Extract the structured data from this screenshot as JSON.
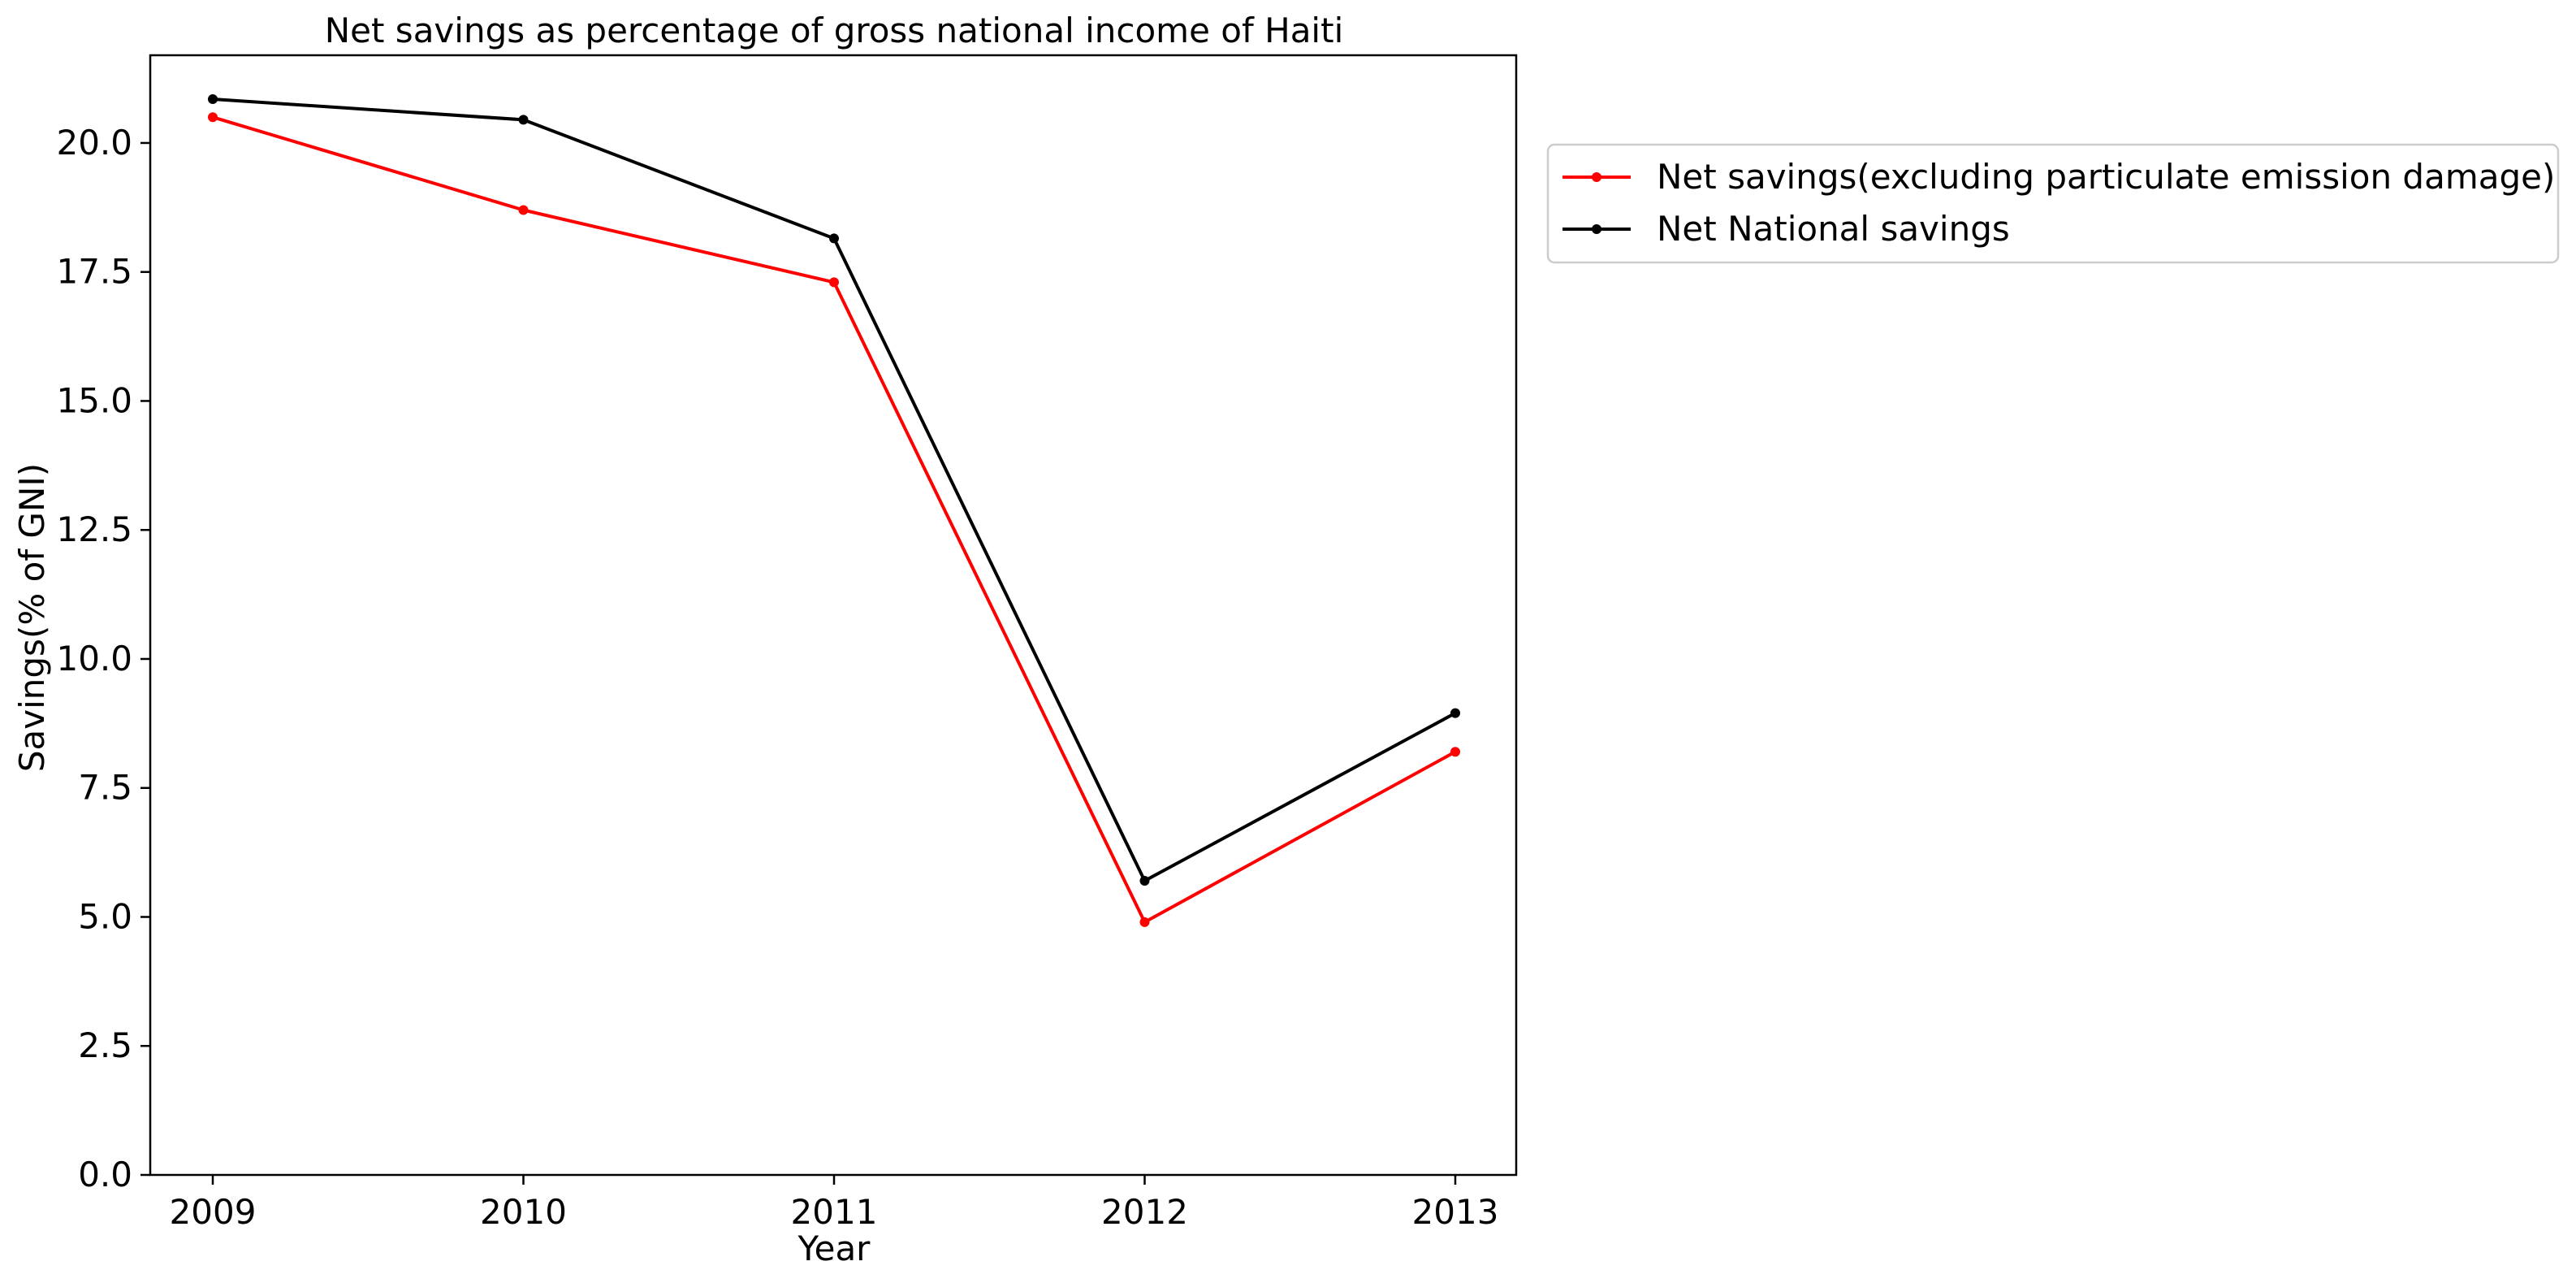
{
  "chart_data": {
    "type": "line",
    "title": "Net savings as percentage of gross national income of Haiti",
    "xlabel": "Year",
    "ylabel": "Savings(% of GNI)",
    "categories": [
      "2009",
      "2010",
      "2011",
      "2012",
      "2013"
    ],
    "series": [
      {
        "name": "Net savings(excluding particulate emission damage)",
        "color": "#ff0000",
        "values": [
          20.5,
          18.7,
          17.3,
          4.9,
          8.2
        ]
      },
      {
        "name": "Net National savings",
        "color": "#000000",
        "values": [
          20.85,
          20.45,
          18.15,
          5.7,
          8.95
        ]
      }
    ],
    "ylim": [
      0,
      21.7
    ],
    "yticks": [
      "0.0",
      "2.5",
      "5.0",
      "7.5",
      "10.0",
      "12.5",
      "15.0",
      "17.5",
      "20.0"
    ],
    "grid": false,
    "legend_position": "outside right, top",
    "marker": "dot"
  }
}
